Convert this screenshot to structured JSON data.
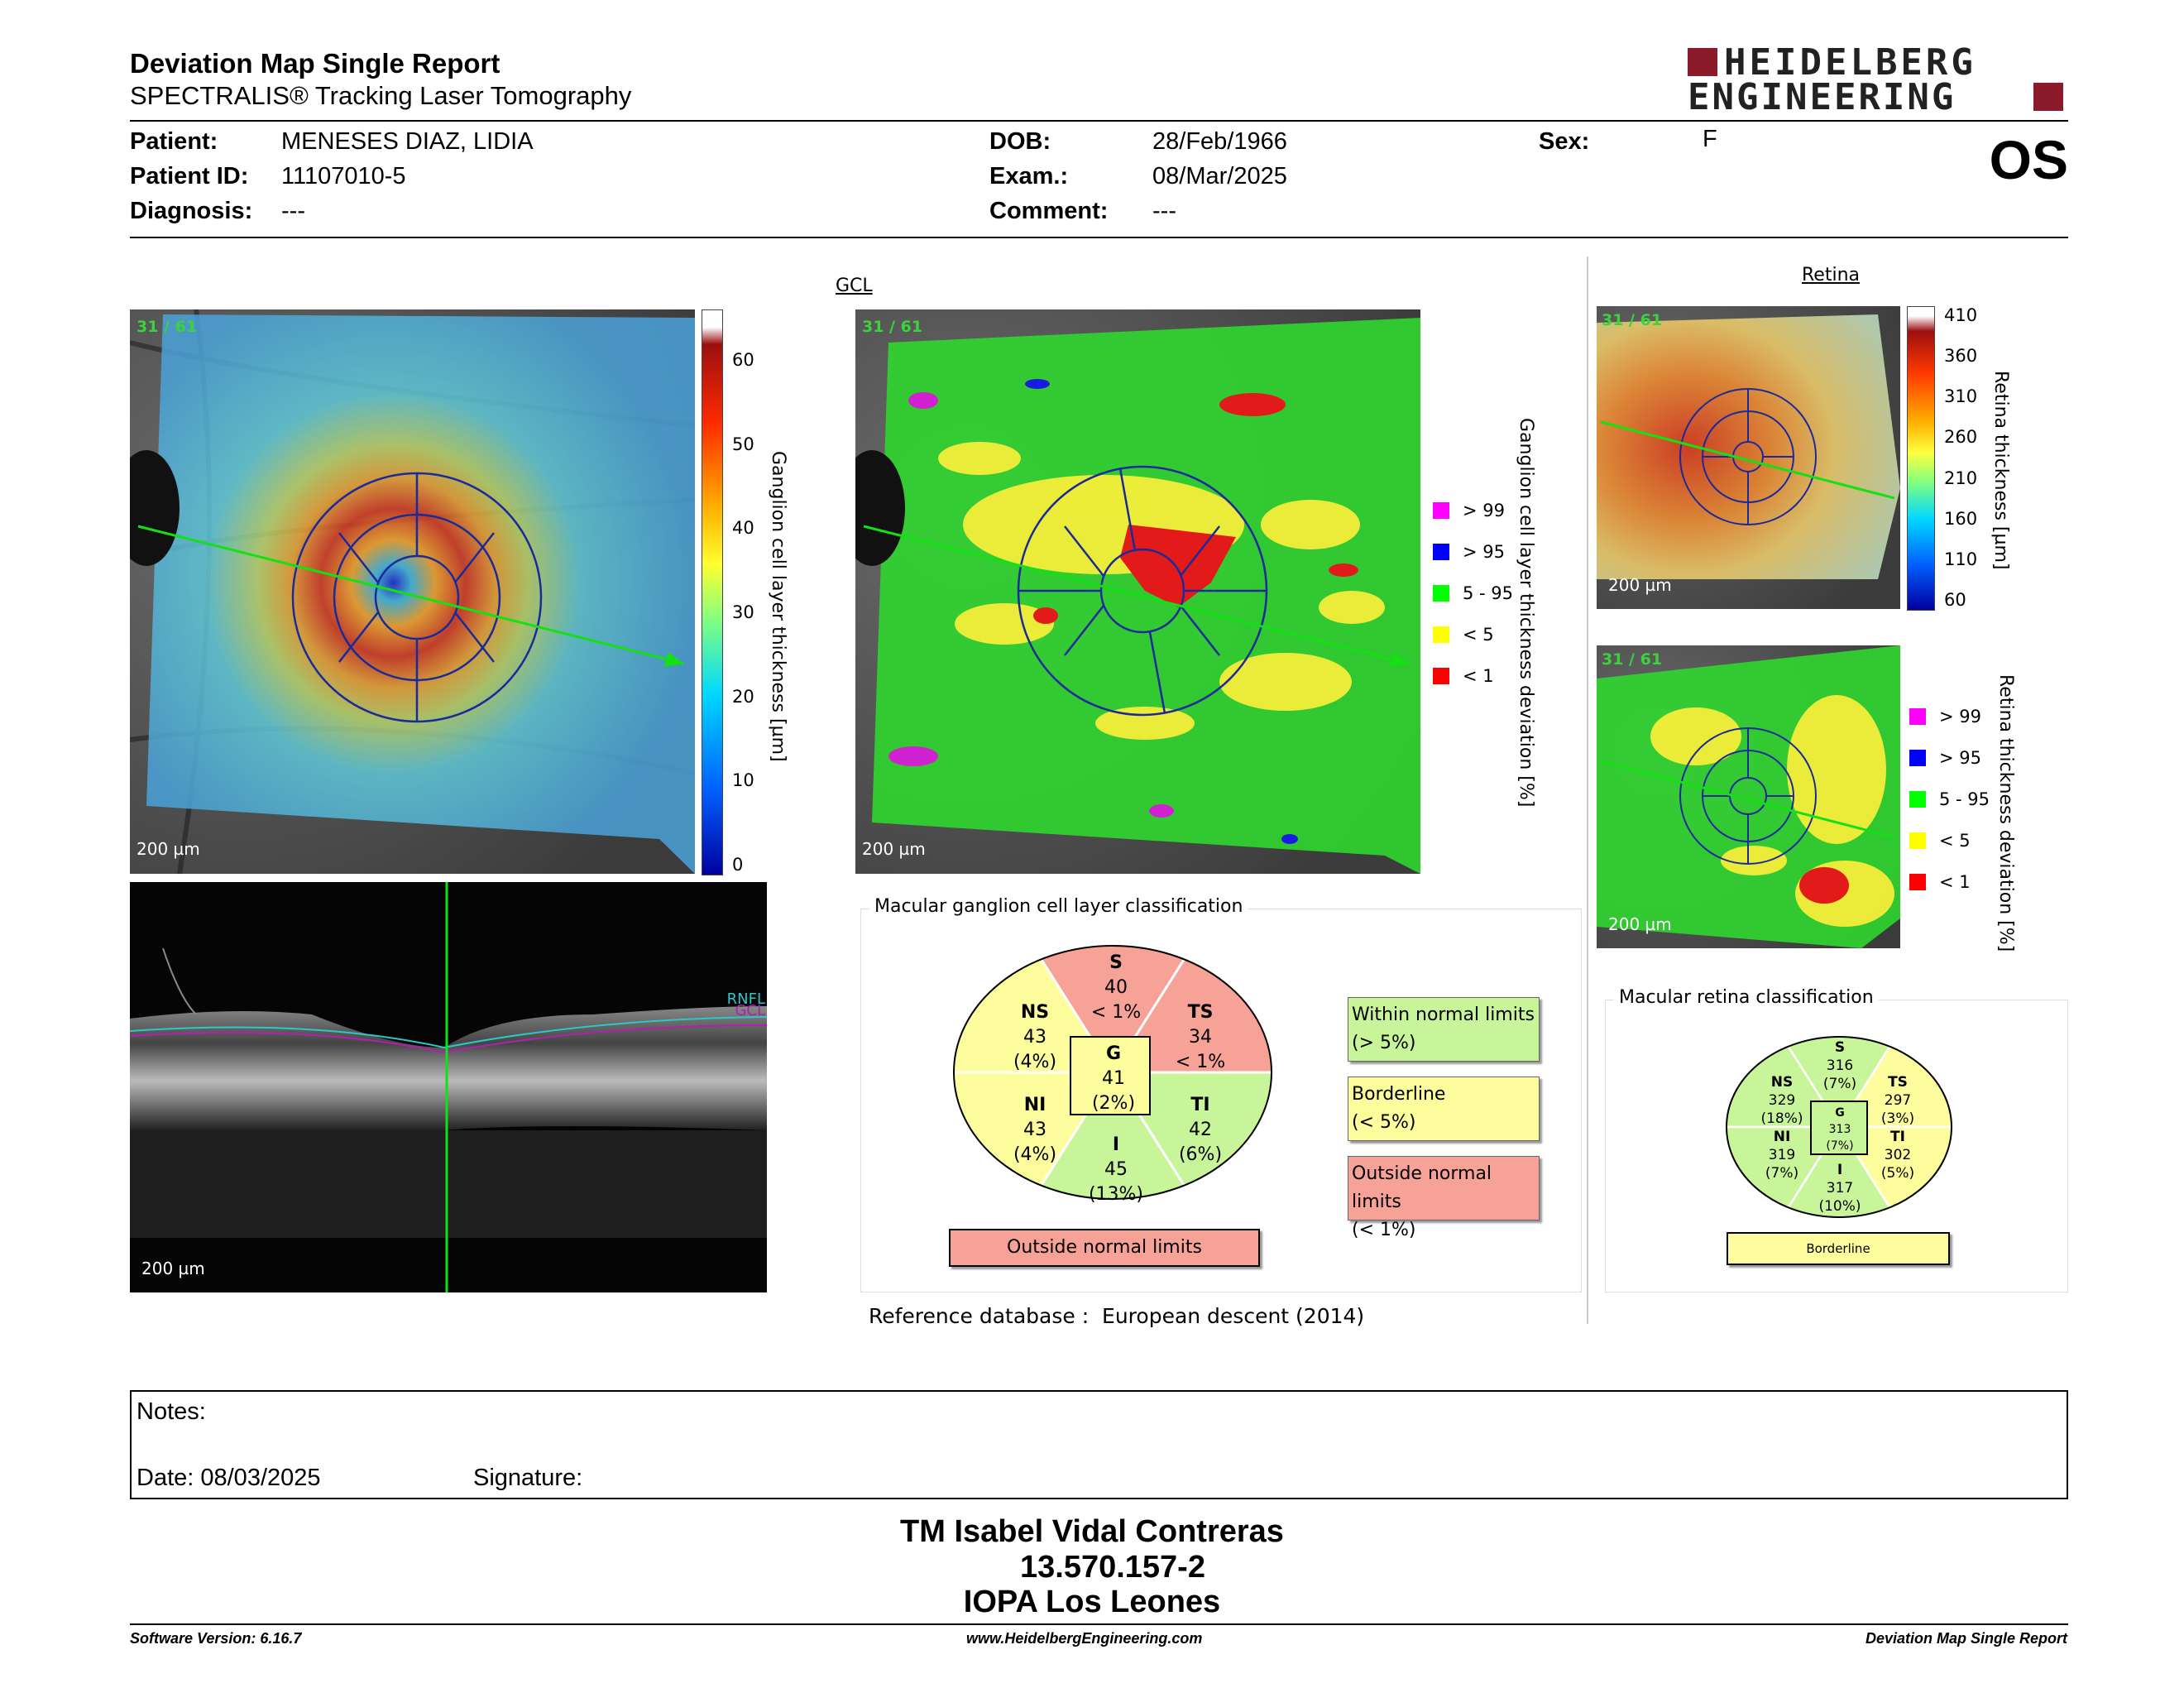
{
  "header": {
    "title": "Deviation Map Single Report",
    "subtitle": "SPECTRALIS® Tracking Laser Tomography",
    "logo_line1": "HEIDELBERG",
    "logo_line2": "ENGINEERING",
    "eye": "OS"
  },
  "patient": {
    "patient_label": "Patient:",
    "patient_value": "MENESES DIAZ, LIDIA",
    "id_label": "Patient ID:",
    "id_value": "11107010-5",
    "diagnosis_label": "Diagnosis:",
    "diagnosis_value": "---",
    "dob_label": "DOB:",
    "dob_value": "28/Feb/1966",
    "exam_label": "Exam.:",
    "exam_value": "08/Mar/2025",
    "comment_label": "Comment:",
    "comment_value": "---",
    "sex_label": "Sex:",
    "sex_value": "F"
  },
  "images": {
    "stat_label": "31 / 61",
    "scale_label": "200 µm",
    "gcl_link": "GCL",
    "retina_link": "Retina"
  },
  "thickness_bar": {
    "label": "Ganglion cell layer thickness [µm]",
    "ticks": [
      "60",
      "50",
      "40",
      "30",
      "20",
      "10",
      "0"
    ]
  },
  "gcl_deviation": {
    "label": "Ganglion cell layer thickness deviation [%]",
    "legend": [
      {
        "label": "> 99",
        "color": "#ff00ff"
      },
      {
        "label": "> 95",
        "color": "#0000ff"
      },
      {
        "label": "5 - 95",
        "color": "#00ff00"
      },
      {
        "label": "< 5",
        "color": "#ffff00"
      },
      {
        "label": "< 1",
        "color": "#ff0000"
      }
    ]
  },
  "retina_bar": {
    "label": "Retina thickness [µm]",
    "ticks": [
      "410",
      "360",
      "310",
      "260",
      "210",
      "160",
      "110",
      "60"
    ]
  },
  "retina_deviation": {
    "label": "Retina thickness deviation [%]",
    "legend": [
      {
        "label": "> 99",
        "color": "#ff00ff"
      },
      {
        "label": "> 95",
        "color": "#0000ff"
      },
      {
        "label": "5 - 95",
        "color": "#00ff00"
      },
      {
        "label": "< 5",
        "color": "#ffff00"
      },
      {
        "label": "< 1",
        "color": "#ff0000"
      }
    ]
  },
  "oct": {
    "rnfl": "RNFL",
    "gcl": "GCL"
  },
  "gcl_classification": {
    "title": "Macular ganglion cell layer classification",
    "S": {
      "name": "S",
      "value": "40",
      "pct": "< 1%"
    },
    "TS": {
      "name": "TS",
      "value": "34",
      "pct": "< 1%"
    },
    "NS": {
      "name": "NS",
      "value": "43",
      "pct": "(4%)"
    },
    "G": {
      "name": "G",
      "value": "41",
      "pct": "(2%)"
    },
    "TI": {
      "name": "TI",
      "value": "42",
      "pct": "(6%)"
    },
    "NI": {
      "name": "NI",
      "value": "43",
      "pct": "(4%)"
    },
    "I": {
      "name": "I",
      "value": "45",
      "pct": "(13%)"
    },
    "result": "Outside normal limits",
    "key_within_1": "Within normal limits",
    "key_within_2": "(> 5%)",
    "key_border_1": "Borderline",
    "key_border_2": "(< 5%)",
    "key_outside_1": "Outside normal limits",
    "key_outside_2": "(< 1%)",
    "colors": {
      "normal": "#c9f59a",
      "borderline": "#fdfd9e",
      "outside": "#f6a297"
    }
  },
  "retina_classification": {
    "title": "Macular retina classification",
    "S": {
      "name": "S",
      "value": "316",
      "pct": "(7%)"
    },
    "TS": {
      "name": "TS",
      "value": "297",
      "pct": "(3%)"
    },
    "NS": {
      "name": "NS",
      "value": "329",
      "pct": "(18%)"
    },
    "G": {
      "name": "G",
      "value": "313",
      "pct": "(7%)"
    },
    "TI": {
      "name": "TI",
      "value": "302",
      "pct": "(5%)"
    },
    "NI": {
      "name": "NI",
      "value": "319",
      "pct": "(7%)"
    },
    "I": {
      "name": "I",
      "value": "317",
      "pct": "(10%)"
    },
    "result": "Borderline"
  },
  "reference": {
    "label": "Reference database :",
    "value": "European descent (2014)"
  },
  "notes": {
    "notes_label": "Notes:",
    "date_label": "Date: 08/03/2025",
    "signature_label": "Signature:"
  },
  "signature_block": {
    "name": "TM Isabel Vidal Contreras",
    "id": "13.570.157-2",
    "place": "IOPA Los Leones"
  },
  "footer": {
    "software": "Software Version: 6.16.7",
    "url": "www.HeidelbergEngineering.com",
    "report": "Deviation Map Single Report"
  }
}
